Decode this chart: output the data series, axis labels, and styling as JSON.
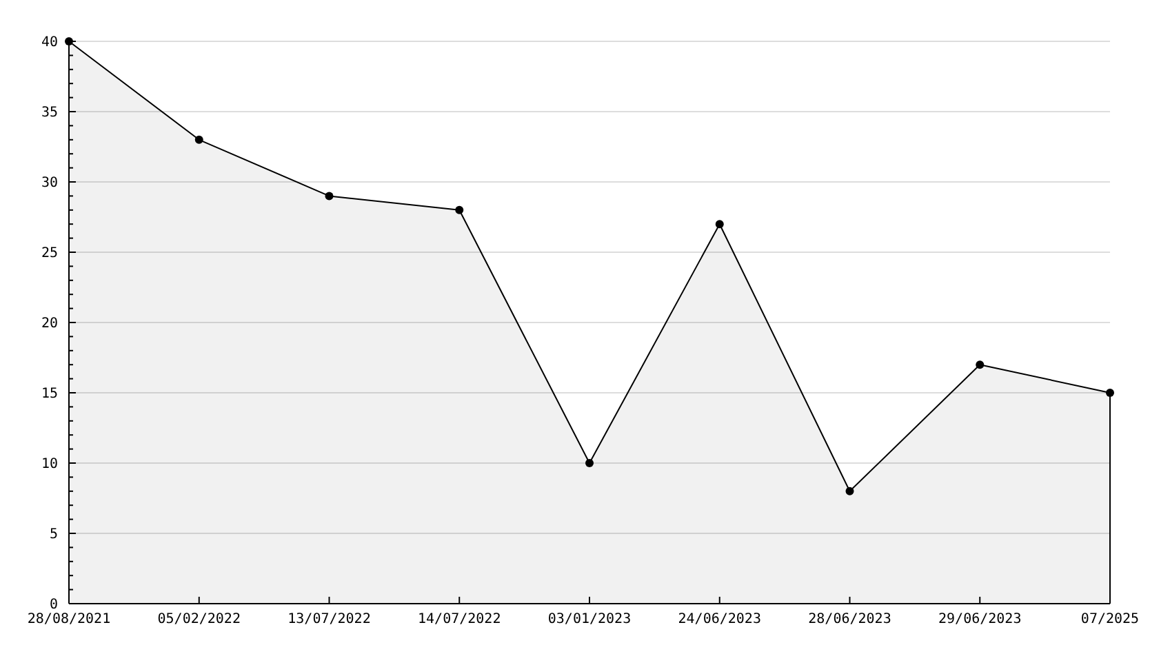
{
  "chart_data": {
    "type": "area",
    "categories": [
      "28/08/2021",
      "05/02/2022",
      "13/07/2022",
      "14/07/2022",
      "03/01/2023",
      "24/06/2023",
      "28/06/2023",
      "29/06/2023",
      "07/2025"
    ],
    "series": [
      {
        "color": "#000000",
        "values": [
          40,
          33,
          29,
          28,
          10,
          27,
          8,
          17,
          15
        ]
      }
    ],
    "ylim": [
      0,
      40
    ],
    "yticks": [
      0,
      {
        "value": 1,
        "label": null
      },
      {
        "value": 2,
        "label": null
      },
      {
        "value": 3,
        "label": null
      },
      {
        "value": 4,
        "label": null
      },
      5,
      {
        "value": 6,
        "label": null
      },
      {
        "value": 7,
        "label": null
      },
      {
        "value": 8,
        "label": null
      },
      {
        "value": 9,
        "label": null
      },
      10,
      {
        "value": 11,
        "label": null
      },
      {
        "value": 12,
        "label": null
      },
      {
        "value": 13,
        "label": null
      },
      {
        "value": 14,
        "label": null
      },
      15,
      {
        "value": 16,
        "label": null
      },
      {
        "value": 17,
        "label": null
      },
      {
        "value": 18,
        "label": null
      },
      {
        "value": 19,
        "label": null
      },
      20,
      {
        "value": 21,
        "label": null
      },
      {
        "value": 22,
        "label": null
      },
      {
        "value": 23,
        "label": null
      },
      {
        "value": 24,
        "label": null
      },
      25,
      {
        "value": 26,
        "label": null
      },
      {
        "value": 27,
        "label": null
      },
      {
        "value": 28,
        "label": null
      },
      {
        "value": 29,
        "label": null
      },
      30,
      {
        "value": 31,
        "label": null
      },
      {
        "value": 32,
        "label": null
      },
      {
        "value": 33,
        "label": null
      },
      {
        "value": 34,
        "label": null
      },
      35,
      {
        "value": 36,
        "label": null
      },
      {
        "value": 37,
        "label": null
      },
      {
        "value": 38,
        "label": null
      },
      {
        "value": 39,
        "label": null
      },
      40
    ],
    "grid": "y",
    "marker": "circle",
    "line_style": "solid"
  }
}
